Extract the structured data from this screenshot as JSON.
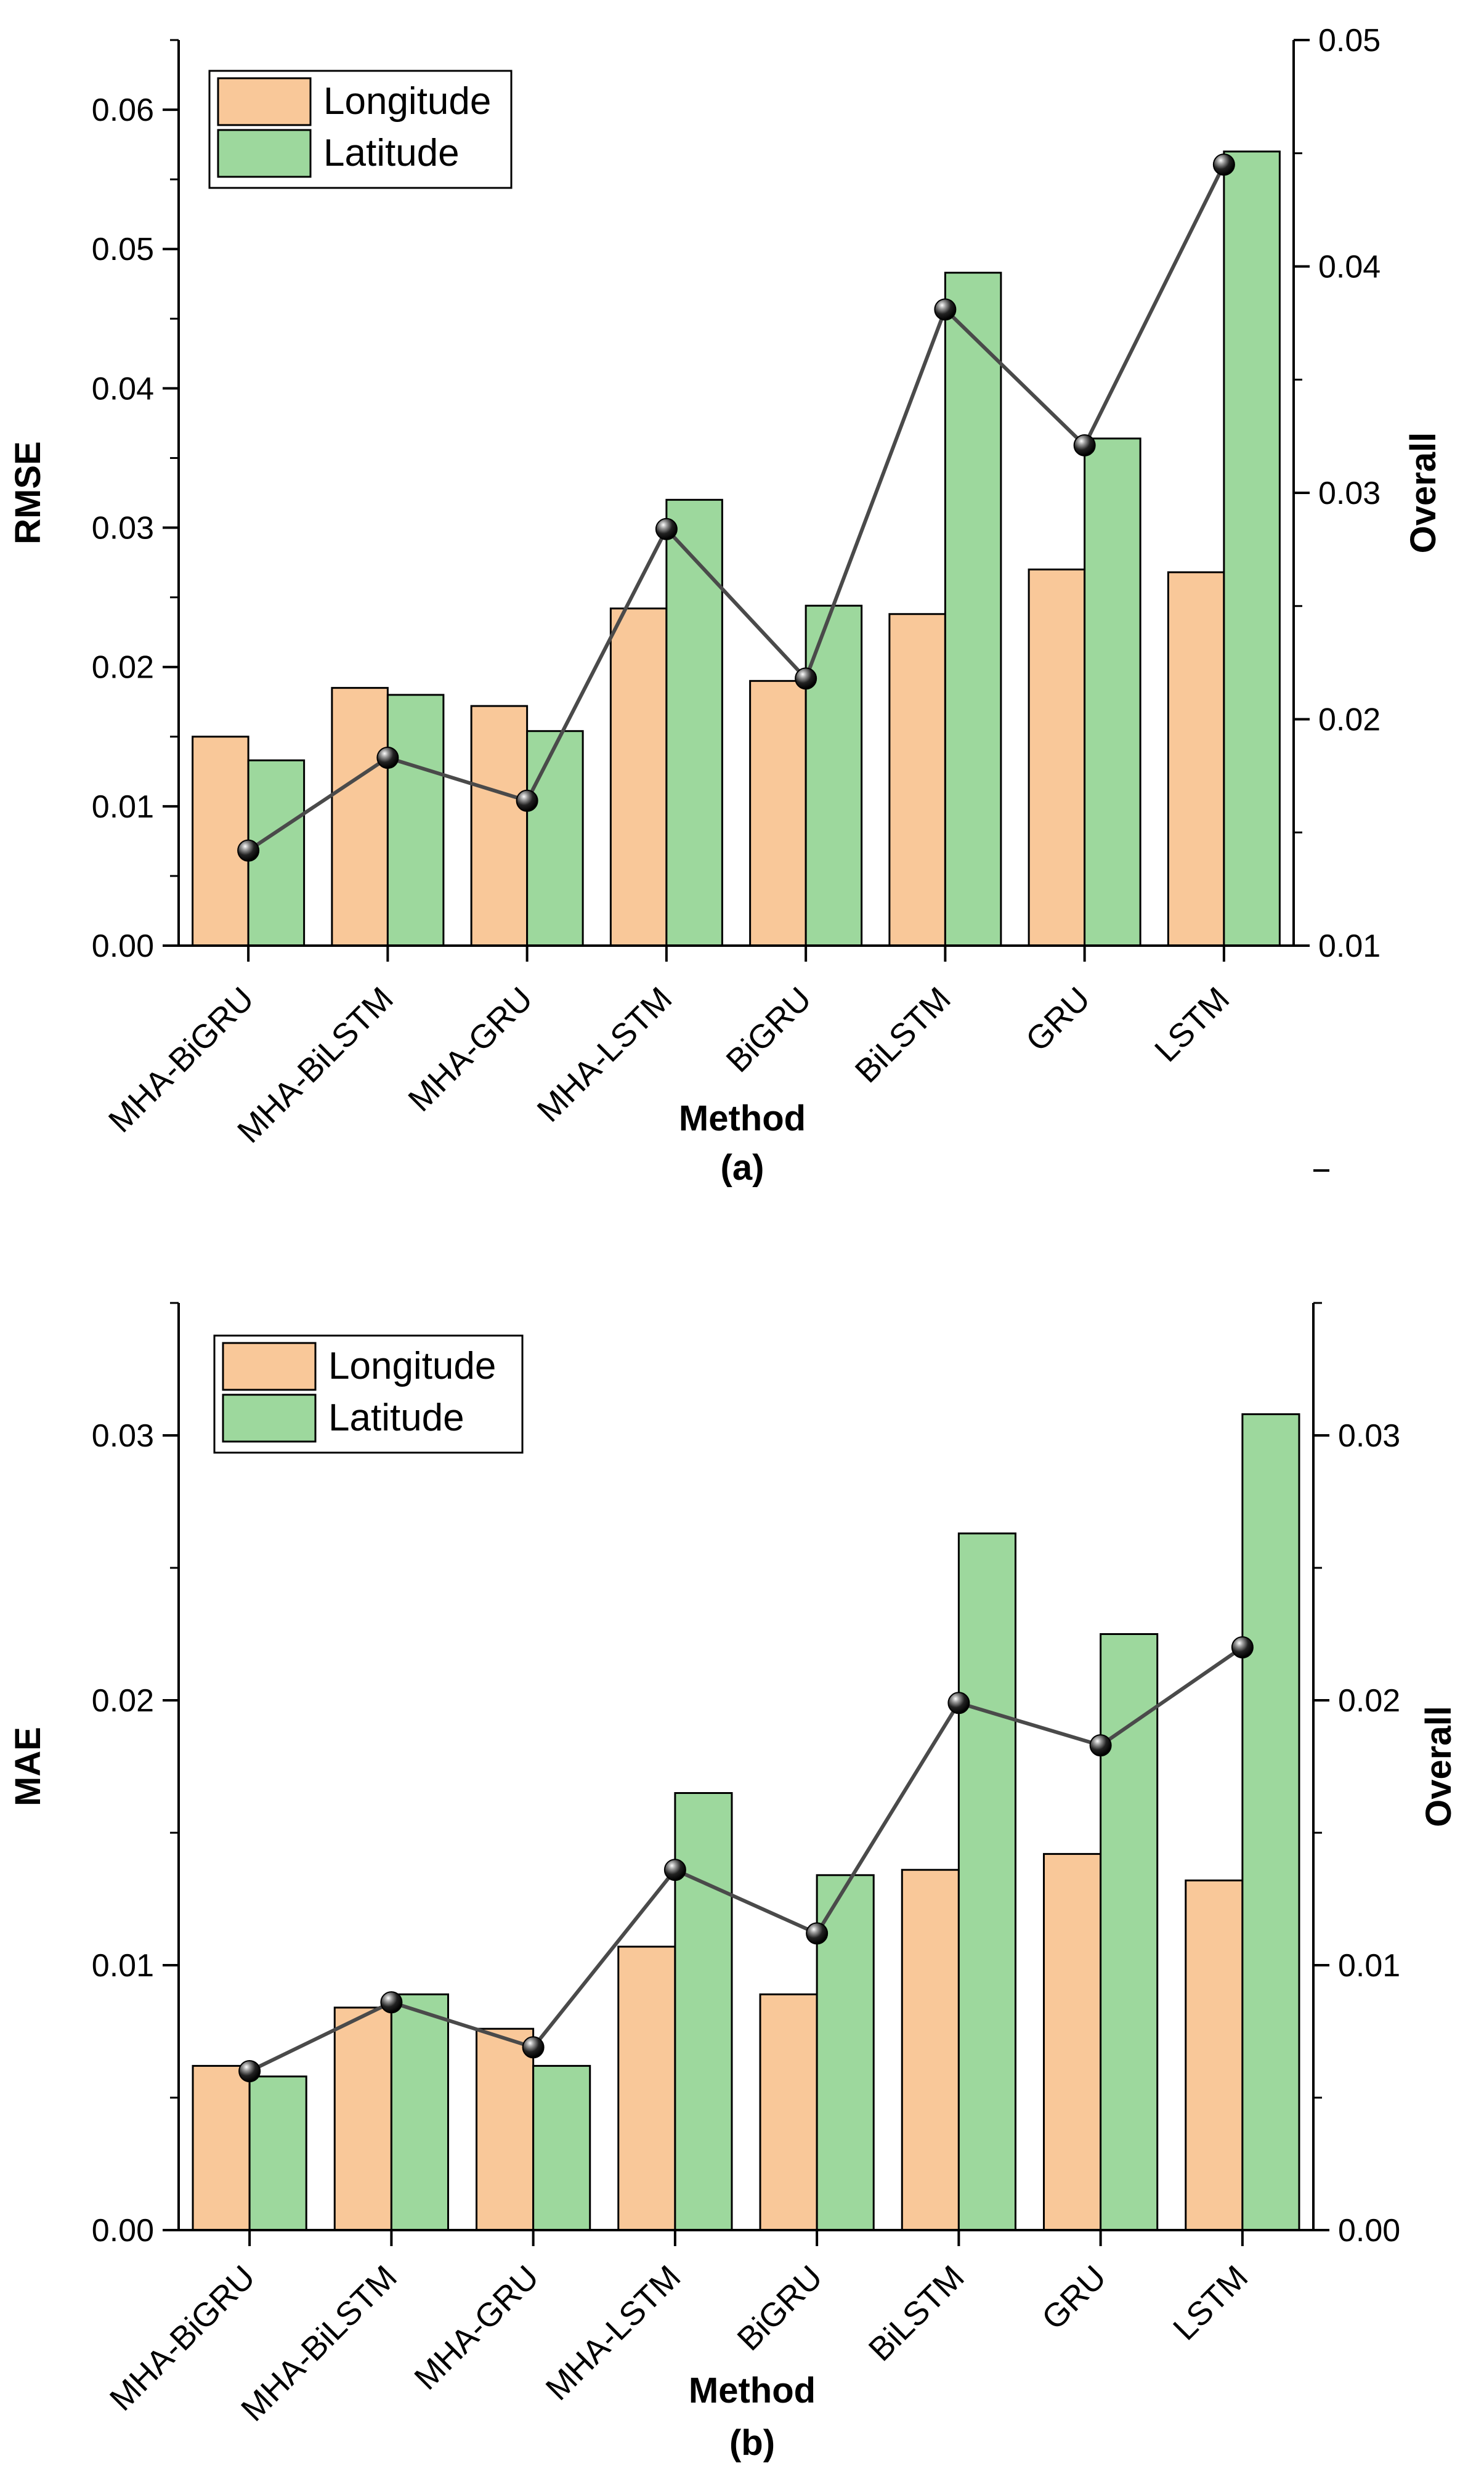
{
  "colors": {
    "longitude": "#f9c899",
    "latitude": "#9dd89d",
    "overall_line": "#4a4a4a",
    "marker": "#111111"
  },
  "chart_data": [
    {
      "type": "bar",
      "panel_label": "(a)",
      "categories": [
        "MHA-BiGRU",
        "MHA-BiLSTM",
        "MHA-GRU",
        "MHA-LSTM",
        "BiGRU",
        "BiLSTM",
        "GRU",
        "LSTM"
      ],
      "xlabel": "Method",
      "ylabel": "RMSE",
      "y2label": "Overall",
      "ylim": [
        0,
        0.065
      ],
      "yticks": [
        "0.00",
        "0.01",
        "0.02",
        "0.03",
        "0.04",
        "0.05",
        "0.06"
      ],
      "y2lim": [
        0.01,
        0.05
      ],
      "y2ticks": [
        "0.01",
        "0.02",
        "0.03",
        "0.04",
        "0.05"
      ],
      "legend_position": "top-left",
      "series": [
        {
          "name": "Longitude",
          "axis": "left",
          "values": [
            0.015,
            0.0185,
            0.0172,
            0.0242,
            0.019,
            0.0238,
            0.027,
            0.0268
          ]
        },
        {
          "name": "Latitude",
          "axis": "left",
          "values": [
            0.0133,
            0.018,
            0.0154,
            0.032,
            0.0244,
            0.0483,
            0.0364,
            0.057
          ]
        },
        {
          "axis": "right",
          "line": true,
          "values": [
            0.0142,
            0.0183,
            0.0164,
            0.0284,
            0.0218,
            0.0381,
            0.0321,
            0.0445
          ]
        }
      ]
    },
    {
      "type": "bar",
      "panel_label": "(b)",
      "categories": [
        "MHA-BiGRU",
        "MHA-BiLSTM",
        "MHA-GRU",
        "MHA-LSTM",
        "BiGRU",
        "BiLSTM",
        "GRU",
        "LSTM"
      ],
      "xlabel": "Method",
      "ylabel": "MAE",
      "y2label": "Overall",
      "ylim": [
        0,
        0.035
      ],
      "yticks": [
        "0.00",
        "0.01",
        "0.02",
        "0.03"
      ],
      "y2lim": [
        0,
        0.035
      ],
      "y2ticks": [
        "0.00",
        "0.01",
        "0.02",
        "0.03"
      ],
      "legend_position": "top-left",
      "series": [
        {
          "name": "Longitude",
          "axis": "left",
          "values": [
            0.0062,
            0.0084,
            0.0076,
            0.0107,
            0.0089,
            0.0136,
            0.0142,
            0.0132
          ]
        },
        {
          "name": "Latitude",
          "axis": "left",
          "values": [
            0.0058,
            0.0089,
            0.0062,
            0.0165,
            0.0134,
            0.0263,
            0.0225,
            0.0308
          ]
        },
        {
          "axis": "right",
          "line": true,
          "values": [
            0.006,
            0.0086,
            0.0069,
            0.0136,
            0.0112,
            0.0199,
            0.0183,
            0.022
          ]
        }
      ]
    }
  ]
}
